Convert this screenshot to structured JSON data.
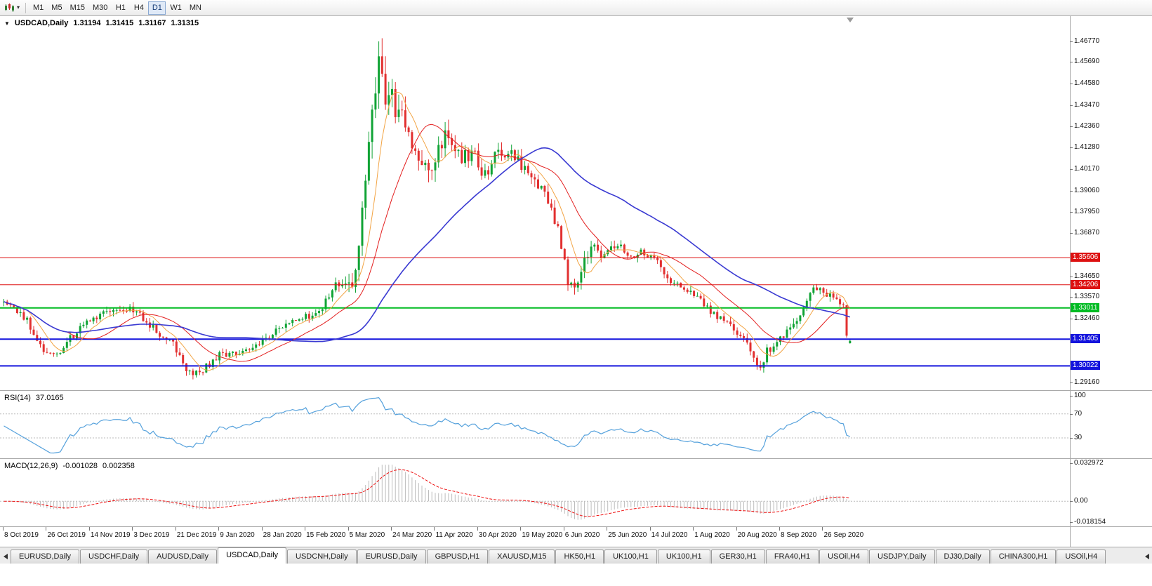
{
  "toolbar": {
    "timeframes": [
      {
        "label": "M1",
        "active": false
      },
      {
        "label": "M5",
        "active": false
      },
      {
        "label": "M15",
        "active": false
      },
      {
        "label": "M30",
        "active": false
      },
      {
        "label": "H1",
        "active": false
      },
      {
        "label": "H4",
        "active": false
      },
      {
        "label": "D1",
        "active": true
      },
      {
        "label": "W1",
        "active": false
      },
      {
        "label": "MN",
        "active": false
      }
    ]
  },
  "chart": {
    "symbol": "USDCAD,Daily",
    "ohlc": {
      "open": "1.31194",
      "high": "1.31415",
      "low": "1.31167",
      "close": "1.31315"
    },
    "bars": 256,
    "price_axis": {
      "max": 1.4795,
      "min": 1.2895,
      "labels": [
        "1.46770",
        "1.45690",
        "1.44580",
        "1.43470",
        "1.42360",
        "1.41280",
        "1.40170",
        "1.39060",
        "1.37950",
        "1.36870",
        "1.34650",
        "1.33570",
        "1.32460",
        "1.29160"
      ]
    },
    "levels": [
      {
        "label": "1.35606",
        "price": 1.35606,
        "color": "#dd1111",
        "thickness": 1
      },
      {
        "label": "1.34206",
        "price": 1.34206,
        "color": "#dd1111",
        "thickness": 1
      },
      {
        "label": "1.33011",
        "price": 1.33011,
        "color": "#00bb22",
        "thickness": 2
      },
      {
        "label": "1.31405",
        "price": 1.31405,
        "color": "#1414dd",
        "thickness": 2
      },
      {
        "label": "1.30022",
        "price": 1.30022,
        "color": "#1414dd",
        "thickness": 2
      }
    ],
    "colors": {
      "up": "#10a335",
      "down": "#e23030",
      "ma_fast": "#f2a444",
      "ma_mid": "#e31f1f",
      "ma_slow": "#3a3ad2"
    },
    "price_path_anchors": [
      [
        0.0,
        1.333
      ],
      [
        0.012,
        1.3295
      ],
      [
        0.028,
        1.323
      ],
      [
        0.048,
        1.3085
      ],
      [
        0.062,
        1.3055
      ],
      [
        0.078,
        1.314
      ],
      [
        0.098,
        1.3235
      ],
      [
        0.12,
        1.3275
      ],
      [
        0.138,
        1.33
      ],
      [
        0.152,
        1.3285
      ],
      [
        0.168,
        1.3235
      ],
      [
        0.186,
        1.3165
      ],
      [
        0.2,
        1.3125
      ],
      [
        0.214,
        1.299
      ],
      [
        0.228,
        1.2958
      ],
      [
        0.242,
        1.3005
      ],
      [
        0.256,
        1.306
      ],
      [
        0.275,
        1.3065
      ],
      [
        0.295,
        1.31
      ],
      [
        0.315,
        1.3155
      ],
      [
        0.335,
        1.324
      ],
      [
        0.356,
        1.3255
      ],
      [
        0.376,
        1.3295
      ],
      [
        0.394,
        1.3435
      ],
      [
        0.406,
        1.339
      ],
      [
        0.416,
        1.349
      ],
      [
        0.426,
        1.387
      ],
      [
        0.434,
        1.423
      ],
      [
        0.44,
        1.452
      ],
      [
        0.444,
        1.464
      ],
      [
        0.449,
        1.443
      ],
      [
        0.457,
        1.441
      ],
      [
        0.464,
        1.426
      ],
      [
        0.471,
        1.433
      ],
      [
        0.479,
        1.416
      ],
      [
        0.489,
        1.407
      ],
      [
        0.5,
        1.399
      ],
      [
        0.511,
        1.41
      ],
      [
        0.522,
        1.4185
      ],
      [
        0.535,
        1.411
      ],
      [
        0.548,
        1.4065
      ],
      [
        0.558,
        1.41
      ],
      [
        0.567,
        1.3965
      ],
      [
        0.581,
        1.408
      ],
      [
        0.596,
        1.411
      ],
      [
        0.609,
        1.405
      ],
      [
        0.623,
        1.3955
      ],
      [
        0.641,
        1.388
      ],
      [
        0.655,
        1.3695
      ],
      [
        0.668,
        1.3425
      ],
      [
        0.675,
        1.3395
      ],
      [
        0.686,
        1.354
      ],
      [
        0.696,
        1.364
      ],
      [
        0.705,
        1.3565
      ],
      [
        0.712,
        1.3585
      ],
      [
        0.726,
        1.362
      ],
      [
        0.739,
        1.356
      ],
      [
        0.751,
        1.3595
      ],
      [
        0.763,
        1.3575
      ],
      [
        0.776,
        1.3515
      ],
      [
        0.791,
        1.3425
      ],
      [
        0.803,
        1.34
      ],
      [
        0.814,
        1.3385
      ],
      [
        0.827,
        1.3325
      ],
      [
        0.841,
        1.326
      ],
      [
        0.856,
        1.3215
      ],
      [
        0.864,
        1.3175
      ],
      [
        0.876,
        1.3125
      ],
      [
        0.886,
        1.3055
      ],
      [
        0.894,
        1.2998
      ],
      [
        0.902,
        1.3075
      ],
      [
        0.915,
        1.3145
      ],
      [
        0.929,
        1.3195
      ],
      [
        0.941,
        1.3265
      ],
      [
        0.953,
        1.3365
      ],
      [
        0.961,
        1.3405
      ],
      [
        0.969,
        1.339
      ],
      [
        0.979,
        1.3345
      ],
      [
        0.989,
        1.332
      ],
      [
        0.996,
        1.329
      ],
      [
        1.0,
        1.3135
      ]
    ],
    "volatility_anchors": [
      [
        0.0,
        0.0042
      ],
      [
        0.2,
        0.0045
      ],
      [
        0.3,
        0.0038
      ],
      [
        0.4,
        0.0055
      ],
      [
        0.425,
        0.015
      ],
      [
        0.445,
        0.0185
      ],
      [
        0.47,
        0.0135
      ],
      [
        0.52,
        0.0105
      ],
      [
        0.6,
        0.0075
      ],
      [
        0.67,
        0.007
      ],
      [
        0.75,
        0.0048
      ],
      [
        0.86,
        0.0045
      ],
      [
        0.95,
        0.0055
      ],
      [
        1.0,
        0.005
      ]
    ],
    "final_candles": [
      [
        1.3308,
        1.3316,
        1.3148,
        1.3158
      ],
      [
        1.31194,
        1.31415,
        1.31167,
        1.31315
      ]
    ]
  },
  "time_axis": {
    "dates": [
      "8 Oct 2019",
      "26 Oct 2019",
      "14 Nov 2019",
      "3 Dec 2019",
      "21 Dec 2019",
      "9 Jan 2020",
      "28 Jan 2020",
      "15 Feb 2020",
      "5 Mar 2020",
      "24 Mar 2020",
      "11 Apr 2020",
      "30 Apr 2020",
      "19 May 2020",
      "6 Jun 2020",
      "25 Jun 2020",
      "14 Jul 2020",
      "1 Aug 2020",
      "20 Aug 2020",
      "8 Sep 2020",
      "26 Sep 2020"
    ]
  },
  "rsi": {
    "label": "RSI(14)",
    "value": "37.0165",
    "period": 14,
    "color": "#55a1dc",
    "axis_labels": [
      "100",
      "70",
      "30"
    ],
    "axis_values": [
      100,
      70,
      30
    ],
    "guide_levels": [
      70,
      30
    ]
  },
  "macd": {
    "label": "MACD(12,26,9)",
    "value_main": "-0.001028",
    "value_signal": "0.002358",
    "fast": 12,
    "slow": 26,
    "signal": 9,
    "hist_color": "#bcbcbc",
    "signal_color": "#ee1111",
    "axis_labels": [
      "0.032972",
      "0.00",
      "-0.018154"
    ],
    "axis_values": [
      0.032972,
      0,
      -0.018154
    ],
    "max": 0.032972,
    "min": -0.018154
  },
  "tabs": [
    {
      "label": "EURUSD,Daily",
      "active": false
    },
    {
      "label": "USDCHF,Daily",
      "active": false
    },
    {
      "label": "AUDUSD,Daily",
      "active": false
    },
    {
      "label": "USDCAD,Daily",
      "active": true
    },
    {
      "label": "USDCNH,Daily",
      "active": false
    },
    {
      "label": "EURUSD,Daily",
      "active": false
    },
    {
      "label": "GBPUSD,H1",
      "active": false
    },
    {
      "label": "XAUUSD,M15",
      "active": false
    },
    {
      "label": "HK50,H1",
      "active": false
    },
    {
      "label": "UK100,H1",
      "active": false
    },
    {
      "label": "UK100,H1",
      "active": false
    },
    {
      "label": "GER30,H1",
      "active": false
    },
    {
      "label": "FRA40,H1",
      "active": false
    },
    {
      "label": "USOil,H4",
      "active": false
    },
    {
      "label": "USDJPY,Daily",
      "active": false
    },
    {
      "label": "DJ30,Daily",
      "active": false
    },
    {
      "label": "CHINA300,H1",
      "active": false
    },
    {
      "label": "USOil,H4",
      "active": false
    }
  ]
}
